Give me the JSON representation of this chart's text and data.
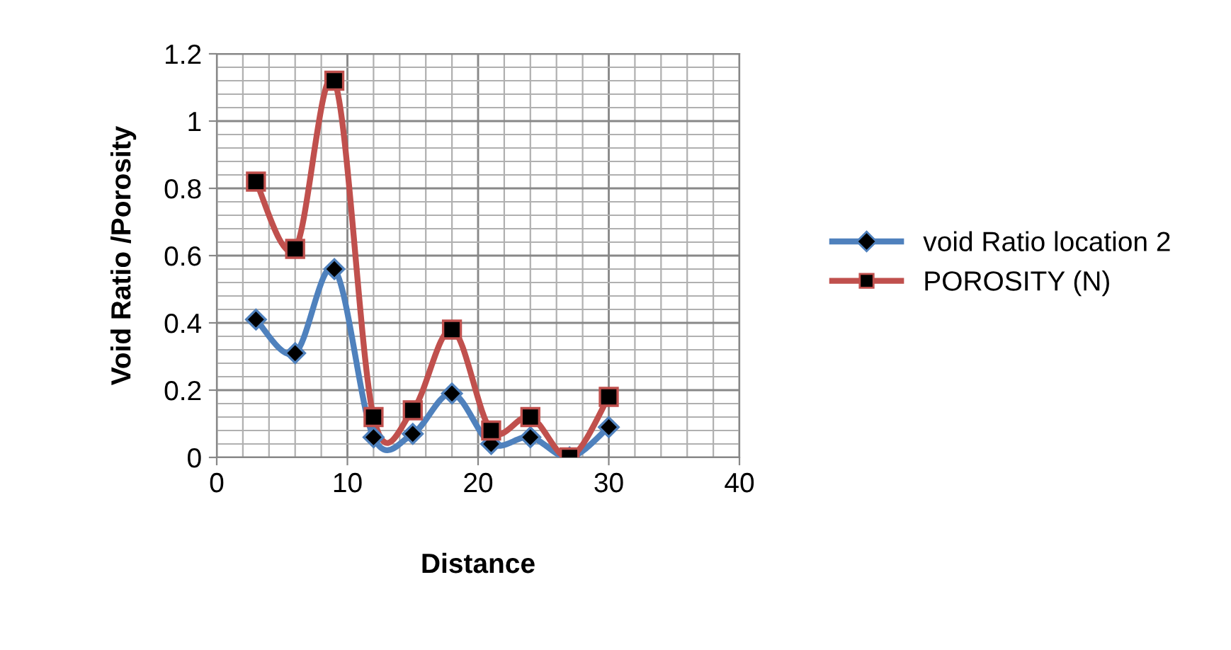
{
  "chart_data": {
    "type": "line",
    "xlabel": "Distance",
    "ylabel": "Void Ratio /Porosity",
    "x": [
      3,
      6,
      9,
      12,
      15,
      18,
      21,
      24,
      27,
      30
    ],
    "series": [
      {
        "name": "void Ratio location 2",
        "color": "#4f81bd",
        "marker": "diamond",
        "values": [
          0.41,
          0.31,
          0.56,
          0.06,
          0.07,
          0.19,
          0.04,
          0.06,
          0.0,
          0.09
        ]
      },
      {
        "name": "POROSITY (N)",
        "color": "#c0504d",
        "marker": "square",
        "values": [
          0.82,
          0.62,
          1.12,
          0.12,
          0.14,
          0.38,
          0.08,
          0.12,
          0.0,
          0.18
        ]
      }
    ],
    "xlim": [
      0,
      40
    ],
    "xticks": [
      0,
      10,
      20,
      30,
      40
    ],
    "ylim": [
      0,
      1.2
    ],
    "yticks": [
      0,
      0.2,
      0.4,
      0.6,
      0.8,
      1,
      1.2
    ],
    "grid": true,
    "legend": "right",
    "line_style": "solid"
  }
}
